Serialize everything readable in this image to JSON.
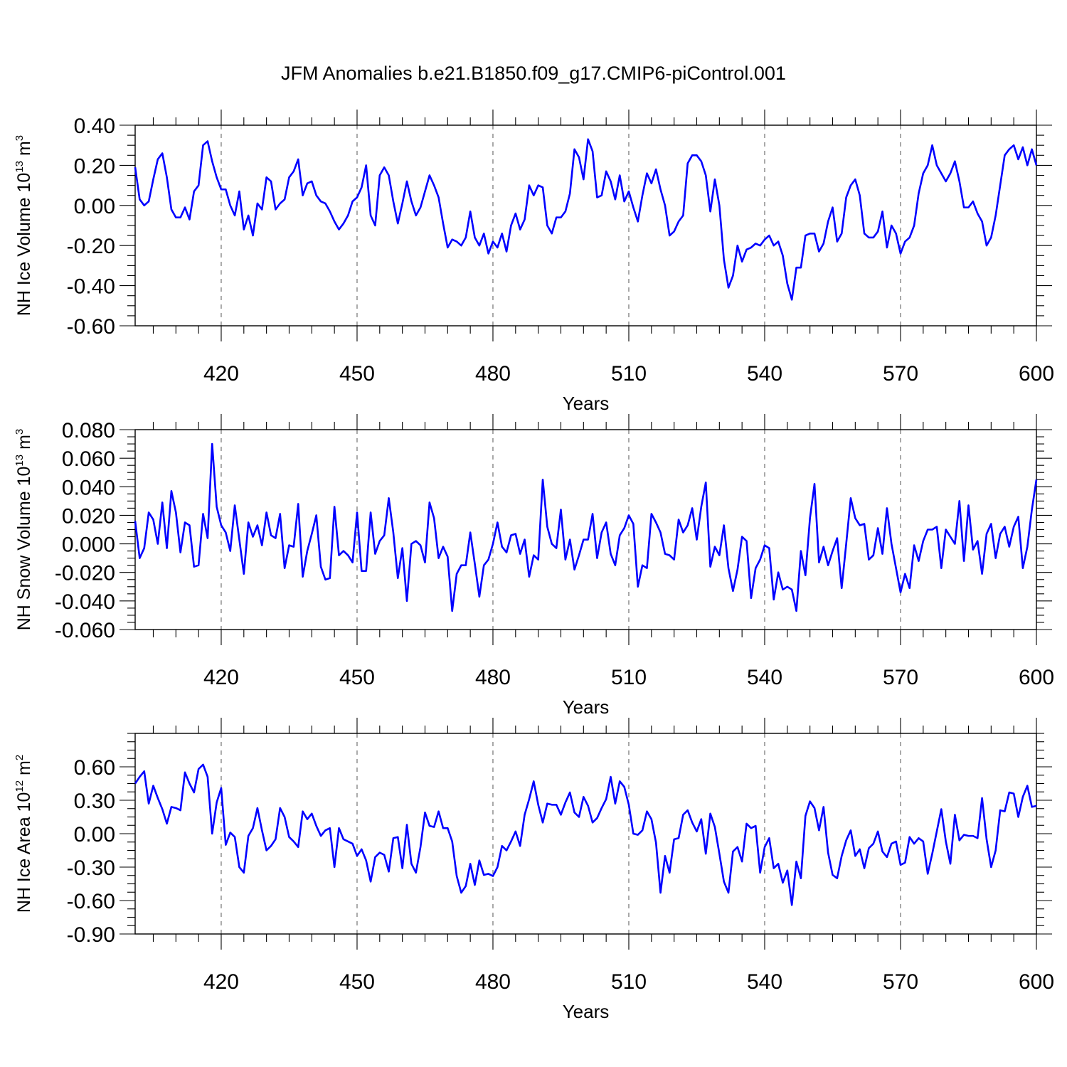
{
  "figure": {
    "title": "JFM Anomalies b.e21.B1850.f09_g17.CMIP6-piControl.001"
  },
  "colors": {
    "series": "#0000ff",
    "axis": "#000000"
  },
  "chart_data": [
    {
      "type": "line",
      "title": "JFM Anomalies b.e21.B1850.f09_g17.CMIP6-piControl.001",
      "xlabel": "Years",
      "ylabel": "NH Ice Volume 10",
      "ylabel_exp": "13",
      "ylabel_unit": " m",
      "ylabel_unit_exp": "3",
      "xlim": [
        401,
        600
      ],
      "ylim": [
        -0.6,
        0.4
      ],
      "xticks": [
        420,
        450,
        480,
        510,
        540,
        570,
        600
      ],
      "xtick_labels": [
        "420",
        "450",
        "480",
        "510",
        "540",
        "570",
        "600"
      ],
      "yticks": [
        -0.6,
        -0.4,
        -0.2,
        0.0,
        0.2,
        0.4
      ],
      "ytick_labels": [
        "-0.60",
        "-0.40",
        "-0.20",
        "0.00",
        "0.20",
        "0.40"
      ],
      "yminor": 0.05,
      "grid": "vertical dashed at major x ticks",
      "series": [
        {
          "name": "NH Ice Volume",
          "x_start": 401,
          "values": [
            0.19,
            0.03,
            0.0,
            0.02,
            0.13,
            0.23,
            0.26,
            0.14,
            -0.02,
            -0.06,
            -0.06,
            -0.01,
            -0.07,
            0.07,
            0.1,
            0.3,
            0.32,
            0.22,
            0.14,
            0.08,
            0.08,
            0.0,
            -0.05,
            0.07,
            -0.12,
            -0.05,
            -0.15,
            0.01,
            -0.02,
            0.14,
            0.12,
            -0.02,
            0.01,
            0.03,
            0.14,
            0.17,
            0.23,
            0.05,
            0.11,
            0.12,
            0.05,
            0.02,
            0.01,
            -0.03,
            -0.08,
            -0.12,
            -0.09,
            -0.05,
            0.02,
            0.04,
            0.09,
            0.2,
            -0.05,
            -0.1,
            0.15,
            0.19,
            0.15,
            0.02,
            -0.09,
            0.01,
            0.12,
            0.02,
            -0.05,
            -0.01,
            0.07,
            0.15,
            0.1,
            0.04,
            -0.09,
            -0.21,
            -0.17,
            -0.18,
            -0.2,
            -0.16,
            -0.03,
            -0.16,
            -0.2,
            -0.14,
            -0.24,
            -0.18,
            -0.21,
            -0.14,
            -0.23,
            -0.1,
            -0.04,
            -0.12,
            -0.07,
            0.1,
            0.05,
            0.1,
            0.09,
            -0.1,
            -0.14,
            -0.06,
            -0.06,
            -0.03,
            0.06,
            0.28,
            0.24,
            0.13,
            0.33,
            0.27,
            0.04,
            0.05,
            0.17,
            0.12,
            0.03,
            0.15,
            0.02,
            0.07,
            -0.01,
            -0.08,
            0.05,
            0.16,
            0.11,
            0.18,
            0.08,
            0.0,
            -0.15,
            -0.13,
            -0.08,
            -0.05,
            0.21,
            0.25,
            0.25,
            0.22,
            0.15,
            -0.03,
            0.13,
            0.0,
            -0.27,
            -0.41,
            -0.35,
            -0.2,
            -0.28,
            -0.22,
            -0.21,
            -0.19,
            -0.2,
            -0.17,
            -0.15,
            -0.2,
            -0.18,
            -0.25,
            -0.39,
            -0.47,
            -0.31,
            -0.31,
            -0.15,
            -0.14,
            -0.14,
            -0.23,
            -0.19,
            -0.08,
            -0.01,
            -0.18,
            -0.14,
            0.04,
            0.1,
            0.13,
            0.05,
            -0.14,
            -0.16,
            -0.16,
            -0.13,
            -0.03,
            -0.21,
            -0.1,
            -0.14,
            -0.24,
            -0.18,
            -0.16,
            -0.1,
            0.06,
            0.16,
            0.2,
            0.3,
            0.2,
            0.16,
            0.12,
            0.16,
            0.22,
            0.12,
            -0.01,
            -0.01,
            0.02,
            -0.04,
            -0.08,
            -0.2,
            -0.16,
            -0.05,
            0.1,
            0.25,
            0.28,
            0.3,
            0.23,
            0.29,
            0.2,
            0.28,
            0.2
          ]
        }
      ]
    },
    {
      "type": "line",
      "xlabel": "Years",
      "ylabel": "NH Snow Volume 10",
      "ylabel_exp": "13",
      "ylabel_unit": " m",
      "ylabel_unit_exp": "3",
      "xlim": [
        401,
        600
      ],
      "ylim": [
        -0.06,
        0.08
      ],
      "xticks": [
        420,
        450,
        480,
        510,
        540,
        570,
        600
      ],
      "xtick_labels": [
        "420",
        "450",
        "480",
        "510",
        "540",
        "570",
        "600"
      ],
      "yticks": [
        -0.06,
        -0.04,
        -0.02,
        0.0,
        0.02,
        0.04,
        0.06,
        0.08
      ],
      "ytick_labels": [
        "-0.060",
        "-0.040",
        "-0.020",
        "0.000",
        "0.020",
        "0.040",
        "0.060",
        "0.080"
      ],
      "yminor": 0.005,
      "grid": "vertical dashed at major x ticks",
      "series": [
        {
          "name": "NH Snow Volume",
          "x_start": 401,
          "values": [
            0.016,
            -0.01,
            -0.003,
            0.022,
            0.017,
            0.0,
            0.029,
            -0.003,
            0.037,
            0.022,
            -0.006,
            0.015,
            0.013,
            -0.016,
            -0.015,
            0.021,
            0.004,
            0.07,
            0.026,
            0.013,
            0.008,
            -0.005,
            0.027,
            0.003,
            -0.021,
            0.015,
            0.005,
            0.013,
            -0.001,
            0.022,
            0.006,
            0.004,
            0.021,
            -0.017,
            -0.001,
            -0.002,
            0.028,
            -0.023,
            -0.005,
            0.007,
            0.02,
            -0.016,
            -0.025,
            -0.024,
            0.026,
            -0.008,
            -0.005,
            -0.008,
            -0.013,
            0.022,
            -0.019,
            -0.019,
            0.022,
            -0.007,
            0.002,
            0.006,
            0.032,
            0.008,
            -0.024,
            -0.003,
            -0.04,
            0.0,
            0.002,
            -0.001,
            -0.013,
            0.029,
            0.018,
            -0.01,
            -0.002,
            -0.009,
            -0.047,
            -0.021,
            -0.015,
            -0.015,
            0.008,
            -0.014,
            -0.037,
            -0.015,
            -0.011,
            0.0,
            0.015,
            -0.002,
            -0.006,
            0.006,
            0.007,
            -0.007,
            0.003,
            -0.023,
            -0.008,
            -0.011,
            0.045,
            0.012,
            0.0,
            -0.003,
            0.024,
            -0.011,
            0.003,
            -0.018,
            -0.008,
            0.003,
            0.003,
            0.021,
            -0.01,
            0.008,
            0.015,
            -0.007,
            -0.015,
            0.006,
            0.011,
            0.02,
            0.014,
            -0.03,
            -0.015,
            -0.017,
            0.021,
            0.015,
            0.008,
            -0.007,
            -0.008,
            -0.011,
            0.017,
            0.008,
            0.013,
            0.025,
            0.003,
            0.026,
            0.043,
            -0.016,
            -0.002,
            -0.008,
            0.013,
            -0.017,
            -0.033,
            -0.018,
            0.005,
            0.002,
            -0.038,
            -0.017,
            -0.011,
            -0.001,
            -0.003,
            -0.039,
            -0.02,
            -0.032,
            -0.03,
            -0.032,
            -0.047,
            -0.005,
            -0.022,
            0.018,
            0.042,
            -0.013,
            -0.002,
            -0.015,
            -0.005,
            0.004,
            -0.031,
            0.0,
            0.032,
            0.018,
            0.013,
            0.014,
            -0.011,
            -0.008,
            0.011,
            -0.007,
            0.025,
            0.0,
            -0.017,
            -0.034,
            -0.021,
            -0.031,
            -0.001,
            -0.012,
            0.002,
            0.01,
            0.01,
            0.012,
            -0.017,
            0.01,
            0.005,
            0.0,
            0.03,
            -0.012,
            0.027,
            -0.004,
            0.002,
            -0.021,
            0.007,
            0.014,
            -0.01,
            0.007,
            0.012,
            -0.002,
            0.012,
            0.019,
            -0.017,
            -0.002,
            0.024,
            0.045
          ]
        }
      ]
    },
    {
      "type": "line",
      "xlabel": "Years",
      "ylabel": "NH Ice Area 10",
      "ylabel_exp": "12",
      "ylabel_unit": " m",
      "ylabel_unit_exp": "2",
      "xlim": [
        401,
        600
      ],
      "ylim": [
        -0.9,
        0.9
      ],
      "xticks": [
        420,
        450,
        480,
        510,
        540,
        570,
        600
      ],
      "xtick_labels": [
        "420",
        "450",
        "480",
        "510",
        "540",
        "570",
        "600"
      ],
      "yticks": [
        -0.9,
        -0.6,
        -0.3,
        0.0,
        0.3,
        0.6
      ],
      "ytick_labels": [
        "-0.90",
        "-0.60",
        "-0.30",
        "0.00",
        "0.30",
        "0.60"
      ],
      "yminor": 0.075,
      "grid": "vertical dashed at major x ticks",
      "series": [
        {
          "name": "NH Ice Area",
          "x_start": 401,
          "values": [
            0.45,
            0.51,
            0.56,
            0.27,
            0.43,
            0.32,
            0.22,
            0.09,
            0.24,
            0.23,
            0.21,
            0.55,
            0.45,
            0.37,
            0.58,
            0.62,
            0.51,
            0.0,
            0.28,
            0.41,
            -0.1,
            0.01,
            -0.03,
            -0.3,
            -0.35,
            -0.02,
            0.05,
            0.23,
            0.03,
            -0.15,
            -0.11,
            -0.05,
            0.23,
            0.15,
            -0.03,
            -0.07,
            -0.12,
            0.2,
            0.13,
            0.18,
            0.07,
            -0.02,
            0.03,
            0.05,
            -0.3,
            0.05,
            -0.05,
            -0.07,
            -0.09,
            -0.2,
            -0.14,
            -0.24,
            -0.43,
            -0.21,
            -0.17,
            -0.19,
            -0.34,
            -0.04,
            -0.03,
            -0.31,
            0.08,
            -0.27,
            -0.35,
            -0.12,
            0.19,
            0.07,
            0.06,
            0.2,
            0.05,
            0.05,
            -0.07,
            -0.38,
            -0.53,
            -0.47,
            -0.27,
            -0.46,
            -0.24,
            -0.37,
            -0.36,
            -0.38,
            -0.3,
            -0.11,
            -0.15,
            -0.07,
            0.02,
            -0.11,
            0.17,
            0.31,
            0.47,
            0.26,
            0.1,
            0.27,
            0.26,
            0.26,
            0.17,
            0.28,
            0.37,
            0.19,
            0.15,
            0.33,
            0.25,
            0.1,
            0.14,
            0.23,
            0.31,
            0.51,
            0.27,
            0.47,
            0.42,
            0.26,
            0.0,
            -0.01,
            0.03,
            0.2,
            0.13,
            -0.08,
            -0.53,
            -0.2,
            -0.35,
            -0.05,
            -0.04,
            0.17,
            0.21,
            0.1,
            0.02,
            0.13,
            -0.18,
            0.18,
            0.06,
            -0.18,
            -0.43,
            -0.53,
            -0.16,
            -0.12,
            -0.25,
            0.09,
            0.05,
            0.07,
            -0.35,
            -0.12,
            -0.04,
            -0.31,
            -0.27,
            -0.44,
            -0.33,
            -0.64,
            -0.25,
            -0.4,
            0.16,
            0.29,
            0.23,
            0.03,
            0.24,
            -0.17,
            -0.37,
            -0.4,
            -0.2,
            -0.06,
            0.03,
            -0.2,
            -0.14,
            -0.31,
            -0.13,
            -0.09,
            0.02,
            -0.16,
            -0.21,
            -0.09,
            -0.07,
            -0.28,
            -0.26,
            -0.03,
            -0.09,
            -0.04,
            -0.07,
            -0.36,
            -0.18,
            0.02,
            0.22,
            -0.07,
            -0.27,
            0.17,
            -0.06,
            -0.01,
            -0.02,
            -0.02,
            -0.04,
            0.32,
            -0.05,
            -0.3,
            -0.15,
            0.21,
            0.2,
            0.37,
            0.36,
            0.15,
            0.33,
            0.43,
            0.24,
            0.25
          ]
        }
      ]
    }
  ]
}
